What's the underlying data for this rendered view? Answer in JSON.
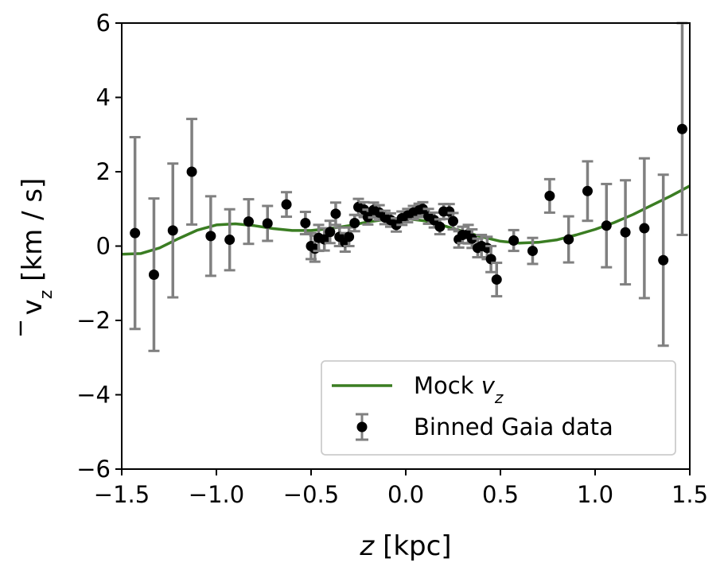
{
  "chart_data": {
    "type": "scatter",
    "xlabel": {
      "var": "z",
      "rest": " [kpc]"
    },
    "ylabel": {
      "main": "v",
      "sub": "z",
      "rest": " [km / s]",
      "overbar": true
    },
    "xlim": [
      -1.5,
      1.5
    ],
    "ylim": [
      -6,
      6
    ],
    "xticks": [
      -1.5,
      -1.0,
      -0.5,
      0.0,
      0.5,
      1.0,
      1.5
    ],
    "xtick_labels": [
      "−1.5",
      "−1.0",
      "−0.5",
      "0.0",
      "0.5",
      "1.0",
      "1.5"
    ],
    "yticks": [
      -6,
      -4,
      -2,
      0,
      2,
      4,
      6
    ],
    "ytick_labels": [
      "−6",
      "−4",
      "−2",
      "0",
      "2",
      "4",
      "6"
    ],
    "grid": false,
    "legend_position": "lower-right",
    "colors": {
      "model": "#3a7d22",
      "data": "#000000",
      "errorbar": "#808080"
    },
    "series": [
      {
        "name": "Mock",
        "name_math": "v",
        "name_sub": "z",
        "kind": "line",
        "x": [
          -1.5,
          -1.4,
          -1.3,
          -1.2,
          -1.1,
          -1.0,
          -0.9,
          -0.8,
          -0.7,
          -0.6,
          -0.5,
          -0.4,
          -0.3,
          -0.2,
          -0.1,
          0.0,
          0.1,
          0.2,
          0.3,
          0.4,
          0.5,
          0.6,
          0.7,
          0.8,
          0.9,
          1.0,
          1.1,
          1.2,
          1.3,
          1.4,
          1.5
        ],
        "y": [
          -0.22,
          -0.2,
          -0.05,
          0.2,
          0.43,
          0.57,
          0.6,
          0.55,
          0.47,
          0.42,
          0.42,
          0.47,
          0.55,
          0.65,
          0.72,
          0.74,
          0.68,
          0.55,
          0.4,
          0.25,
          0.13,
          0.08,
          0.1,
          0.17,
          0.3,
          0.45,
          0.63,
          0.85,
          1.1,
          1.35,
          1.62
        ]
      },
      {
        "name": "Binned Gaia data",
        "kind": "errorbar",
        "points": [
          {
            "x": -1.43,
            "y": 0.35,
            "err": 2.58
          },
          {
            "x": -1.33,
            "y": -0.77,
            "err": 2.05
          },
          {
            "x": -1.23,
            "y": 0.42,
            "err": 1.8
          },
          {
            "x": -1.13,
            "y": 2.0,
            "err": 1.42
          },
          {
            "x": -1.03,
            "y": 0.27,
            "err": 1.07
          },
          {
            "x": -0.93,
            "y": 0.17,
            "err": 0.82
          },
          {
            "x": -0.83,
            "y": 0.66,
            "err": 0.6
          },
          {
            "x": -0.73,
            "y": 0.61,
            "err": 0.47
          },
          {
            "x": -0.63,
            "y": 1.12,
            "err": 0.33
          },
          {
            "x": -0.53,
            "y": 0.62,
            "err": 0.3
          },
          {
            "x": -0.5,
            "y": 0.0,
            "err": 0.35
          },
          {
            "x": -0.48,
            "y": -0.07,
            "err": 0.35
          },
          {
            "x": -0.46,
            "y": 0.22,
            "err": 0.35
          },
          {
            "x": -0.43,
            "y": 0.18,
            "err": 0.3
          },
          {
            "x": -0.4,
            "y": 0.38,
            "err": 0.3
          },
          {
            "x": -0.37,
            "y": 0.87,
            "err": 0.3
          },
          {
            "x": -0.35,
            "y": 0.25,
            "err": 0.25
          },
          {
            "x": -0.32,
            "y": 0.1,
            "err": 0.25
          },
          {
            "x": -0.3,
            "y": 0.25,
            "err": 0.25
          },
          {
            "x": -0.27,
            "y": 0.62,
            "err": 0.22
          },
          {
            "x": -0.25,
            "y": 1.05,
            "err": 0.22
          },
          {
            "x": -0.22,
            "y": 0.98,
            "err": 0.2
          },
          {
            "x": -0.2,
            "y": 0.78,
            "err": 0.2
          },
          {
            "x": -0.17,
            "y": 0.97,
            "err": 0.2
          },
          {
            "x": -0.14,
            "y": 0.9,
            "err": 0.2
          },
          {
            "x": -0.11,
            "y": 0.77,
            "err": 0.18
          },
          {
            "x": -0.08,
            "y": 0.7,
            "err": 0.18
          },
          {
            "x": -0.05,
            "y": 0.57,
            "err": 0.18
          },
          {
            "x": -0.02,
            "y": 0.75,
            "err": 0.18
          },
          {
            "x": 0.01,
            "y": 0.82,
            "err": 0.18
          },
          {
            "x": 0.04,
            "y": 0.9,
            "err": 0.18
          },
          {
            "x": 0.07,
            "y": 0.96,
            "err": 0.18
          },
          {
            "x": 0.09,
            "y": 1.0,
            "err": 0.18
          },
          {
            "x": 0.12,
            "y": 0.8,
            "err": 0.2
          },
          {
            "x": 0.15,
            "y": 0.7,
            "err": 0.2
          },
          {
            "x": 0.18,
            "y": 0.52,
            "err": 0.2
          },
          {
            "x": 0.2,
            "y": 0.93,
            "err": 0.2
          },
          {
            "x": 0.23,
            "y": 0.93,
            "err": 0.2
          },
          {
            "x": 0.25,
            "y": 0.67,
            "err": 0.22
          },
          {
            "x": 0.28,
            "y": 0.18,
            "err": 0.22
          },
          {
            "x": 0.3,
            "y": 0.3,
            "err": 0.22
          },
          {
            "x": 0.33,
            "y": 0.32,
            "err": 0.25
          },
          {
            "x": 0.35,
            "y": 0.2,
            "err": 0.25
          },
          {
            "x": 0.38,
            "y": -0.05,
            "err": 0.25
          },
          {
            "x": 0.4,
            "y": 0.0,
            "err": 0.3
          },
          {
            "x": 0.43,
            "y": -0.05,
            "err": 0.3
          },
          {
            "x": 0.45,
            "y": -0.35,
            "err": 0.35
          },
          {
            "x": 0.48,
            "y": -0.9,
            "err": 0.45
          },
          {
            "x": 0.57,
            "y": 0.15,
            "err": 0.28
          },
          {
            "x": 0.67,
            "y": -0.13,
            "err": 0.35
          },
          {
            "x": 0.76,
            "y": 1.35,
            "err": 0.45
          },
          {
            "x": 0.86,
            "y": 0.18,
            "err": 0.62
          },
          {
            "x": 0.96,
            "y": 1.48,
            "err": 0.8
          },
          {
            "x": 1.06,
            "y": 0.55,
            "err": 1.12
          },
          {
            "x": 1.16,
            "y": 0.37,
            "err": 1.4
          },
          {
            "x": 1.26,
            "y": 0.48,
            "err": 1.88
          },
          {
            "x": 1.36,
            "y": -0.38,
            "err": 2.3
          },
          {
            "x": 1.46,
            "y": 3.15,
            "err": 2.85
          }
        ]
      }
    ]
  }
}
